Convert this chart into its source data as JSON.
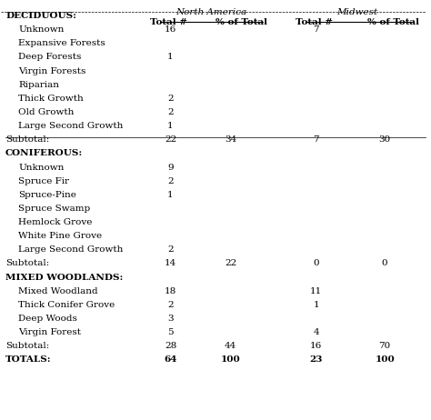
{
  "title": "",
  "col_headers": [
    "",
    "North America\nTotal #",
    "North America\n% of Total",
    "Midwest\nTotal #",
    "Midwest\n% of Total"
  ],
  "rows": [
    {
      "label": "DECIDUOUS:",
      "indent": 0,
      "bold": true,
      "na_total": "",
      "na_pct": "",
      "mw_total": "",
      "mw_pct": ""
    },
    {
      "label": "Unknown",
      "indent": 1,
      "bold": false,
      "na_total": "16",
      "na_pct": "",
      "mw_total": "7",
      "mw_pct": ""
    },
    {
      "label": "Expansive Forests",
      "indent": 1,
      "bold": false,
      "na_total": "",
      "na_pct": "",
      "mw_total": "",
      "mw_pct": ""
    },
    {
      "label": "Deep Forests",
      "indent": 1,
      "bold": false,
      "na_total": "1",
      "na_pct": "",
      "mw_total": "",
      "mw_pct": ""
    },
    {
      "label": "Virgin Forests",
      "indent": 1,
      "bold": false,
      "na_total": "",
      "na_pct": "",
      "mw_total": "",
      "mw_pct": ""
    },
    {
      "label": "Riparian",
      "indent": 1,
      "bold": false,
      "na_total": "",
      "na_pct": "",
      "mw_total": "",
      "mw_pct": ""
    },
    {
      "label": "Thick Growth",
      "indent": 1,
      "bold": false,
      "na_total": "2",
      "na_pct": "",
      "mw_total": "",
      "mw_pct": ""
    },
    {
      "label": "Old Growth",
      "indent": 1,
      "bold": false,
      "na_total": "2",
      "na_pct": "",
      "mw_total": "",
      "mw_pct": ""
    },
    {
      "label": "Large Second Growth",
      "indent": 1,
      "bold": false,
      "na_total": "1",
      "na_pct": "",
      "mw_total": "",
      "mw_pct": ""
    },
    {
      "label": "subtotal_dec",
      "indent": 0,
      "bold": false,
      "na_total": "22",
      "na_pct": "34",
      "mw_total": "7",
      "mw_pct": "30",
      "is_subtotal": true
    },
    {
      "label": "CONIFEROUS:",
      "indent": 0,
      "bold": true,
      "na_total": "",
      "na_pct": "",
      "mw_total": "",
      "mw_pct": ""
    },
    {
      "label": "Unknown",
      "indent": 1,
      "bold": false,
      "na_total": "9",
      "na_pct": "",
      "mw_total": "",
      "mw_pct": ""
    },
    {
      "label": "Spruce Fir",
      "indent": 1,
      "bold": false,
      "na_total": "2",
      "na_pct": "",
      "mw_total": "",
      "mw_pct": ""
    },
    {
      "label": "Spruce-Pine",
      "indent": 1,
      "bold": false,
      "na_total": "1",
      "na_pct": "",
      "mw_total": "",
      "mw_pct": ""
    },
    {
      "label": "Spruce Swamp",
      "indent": 1,
      "bold": false,
      "na_total": "",
      "na_pct": "",
      "mw_total": "",
      "mw_pct": ""
    },
    {
      "label": "Hemlock Grove",
      "indent": 1,
      "bold": false,
      "na_total": "",
      "na_pct": "",
      "mw_total": "",
      "mw_pct": ""
    },
    {
      "label": "White Pine Grove",
      "indent": 1,
      "bold": false,
      "na_total": "",
      "na_pct": "",
      "mw_total": "",
      "mw_pct": ""
    },
    {
      "label": "Large Second Growth",
      "indent": 1,
      "bold": false,
      "na_total": "2",
      "na_pct": "",
      "mw_total": "",
      "mw_pct": ""
    },
    {
      "label": "subtotal_con",
      "indent": 0,
      "bold": false,
      "na_total": "14",
      "na_pct": "22",
      "mw_total": "0",
      "mw_pct": "0",
      "is_subtotal": true
    },
    {
      "label": "MIXED WOODLANDS:",
      "indent": 0,
      "bold": true,
      "na_total": "",
      "na_pct": "",
      "mw_total": "",
      "mw_pct": ""
    },
    {
      "label": "Mixed Woodland",
      "indent": 1,
      "bold": false,
      "na_total": "18",
      "na_pct": "",
      "mw_total": "11",
      "mw_pct": ""
    },
    {
      "label": "Thick Conifer Grove",
      "indent": 1,
      "bold": false,
      "na_total": "2",
      "na_pct": "",
      "mw_total": "1",
      "mw_pct": ""
    },
    {
      "label": "Deep Woods",
      "indent": 1,
      "bold": false,
      "na_total": "3",
      "na_pct": "",
      "mw_total": "",
      "mw_pct": ""
    },
    {
      "label": "Virgin Forest",
      "indent": 1,
      "bold": false,
      "na_total": "5",
      "na_pct": "",
      "mw_total": "4",
      "mw_pct": ""
    },
    {
      "label": "subtotal_mix",
      "indent": 0,
      "bold": true,
      "na_total": "28",
      "na_pct": "44",
      "mw_total": "16",
      "mw_pct": "70",
      "is_subtotal": true
    },
    {
      "label": "TOTALS:",
      "indent": 0,
      "bold": true,
      "na_total": "64",
      "na_pct": "100",
      "mw_total": "23",
      "mw_pct": "100",
      "is_totals": true
    }
  ],
  "bg_color": "#f0f0f0",
  "text_color": "#000000",
  "font_size": 7.5,
  "header_font_size": 7.5
}
